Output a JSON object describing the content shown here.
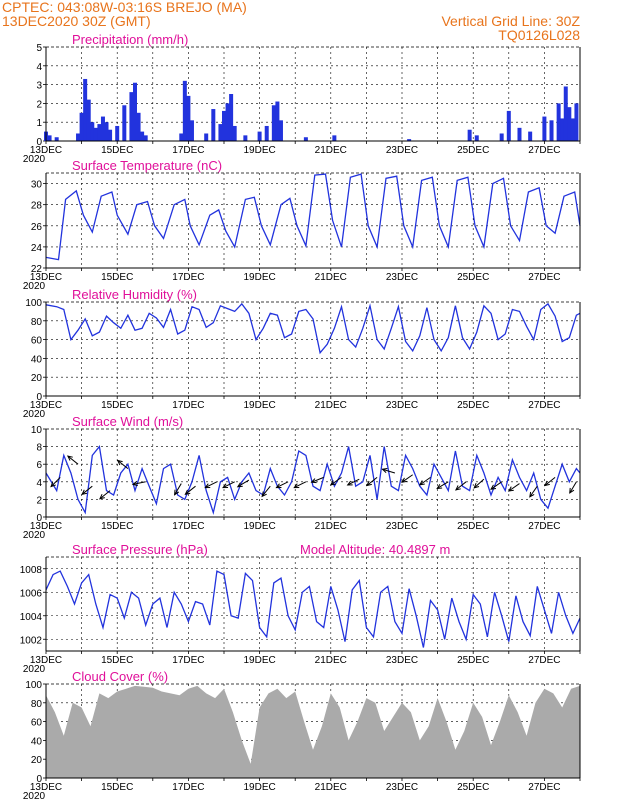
{
  "header": {
    "line1": "CPTEC:   043:08W-03:16S   BREJO (MA)",
    "line2": "13DEC2020 30Z (GMT)",
    "right1": "Vertical Grid Line: 30Z",
    "right2": "TQ0126L028"
  },
  "colors": {
    "header": "#e8741c",
    "panel_title": "#e0109a",
    "series": "#2233dd",
    "cloud": "#aaaaaa",
    "grid": "#000000"
  },
  "x_axis": {
    "labels": [
      "13DEC",
      "15DEC",
      "17DEC",
      "19DEC",
      "21DEC",
      "23DEC",
      "25DEC",
      "27DEC"
    ],
    "year_label": "2020",
    "vertical_grid_line": "30Z"
  },
  "chart_data": [
    {
      "type": "bar",
      "title": "Precipitation (mm/h)",
      "ylim": [
        0,
        5
      ],
      "yticks": [
        "0",
        "1",
        "2",
        "3",
        "4",
        "5"
      ],
      "grid": true,
      "days": [
        13.0,
        13.1,
        13.3,
        13.9,
        14.0,
        14.1,
        14.2,
        14.3,
        14.4,
        14.5,
        14.6,
        14.7,
        14.8,
        15.0,
        15.2,
        15.4,
        15.5,
        15.6,
        15.7,
        15.8,
        16.8,
        16.9,
        17.0,
        17.1,
        17.5,
        17.7,
        17.9,
        18.0,
        18.1,
        18.2,
        18.3,
        18.6,
        19.0,
        19.2,
        19.4,
        19.5,
        19.6,
        20.3,
        21.1,
        23.2,
        24.9,
        25.1,
        25.8,
        26.0,
        26.3,
        26.6,
        27.0,
        27.2,
        27.4,
        27.5,
        27.6,
        27.7,
        27.8,
        27.9
      ],
      "values": [
        0.5,
        0.3,
        0.2,
        0.4,
        1.5,
        3.3,
        2.2,
        1.0,
        0.7,
        0.9,
        1.3,
        1.0,
        0.6,
        0.8,
        1.9,
        2.6,
        3.1,
        1.5,
        0.5,
        0.3,
        0.4,
        3.2,
        2.4,
        1.1,
        0.4,
        1.7,
        0.9,
        1.6,
        2.0,
        2.5,
        0.8,
        0.3,
        0.5,
        0.8,
        1.9,
        2.1,
        1.1,
        0.2,
        0.3,
        0.1,
        0.6,
        0.3,
        0.4,
        1.6,
        0.7,
        0.5,
        1.3,
        1.1,
        2.0,
        1.2,
        2.9,
        1.8,
        1.2,
        2.0
      ]
    },
    {
      "type": "line",
      "title": "Surface Temperature (nC)",
      "ylim": [
        22,
        31
      ],
      "yticks": [
        "22",
        "24",
        "26",
        "28",
        "30"
      ],
      "grid": true,
      "x": [
        13.0,
        13.35,
        13.55,
        13.85,
        14.05,
        14.3,
        14.55,
        14.85,
        15.0,
        15.3,
        15.55,
        15.85,
        16.05,
        16.3,
        16.6,
        16.9,
        17.05,
        17.3,
        17.6,
        17.85,
        18.05,
        18.3,
        18.6,
        18.85,
        19.05,
        19.3,
        19.6,
        19.85,
        20.05,
        20.3,
        20.55,
        20.85,
        21.05,
        21.3,
        21.55,
        21.85,
        22.05,
        22.3,
        22.55,
        22.85,
        23.05,
        23.3,
        23.55,
        23.85,
        24.05,
        24.3,
        24.55,
        24.85,
        25.05,
        25.3,
        25.55,
        25.85,
        26.05,
        26.3,
        26.55,
        26.85,
        27.05,
        27.3,
        27.55,
        27.85,
        28.0
      ],
      "y": [
        23.0,
        22.8,
        28.5,
        29.3,
        27.0,
        25.4,
        28.8,
        29.2,
        27.0,
        25.2,
        28.0,
        28.3,
        26.0,
        24.8,
        28.0,
        28.5,
        26.0,
        24.2,
        27.0,
        27.5,
        25.5,
        24.0,
        28.5,
        28.7,
        26.0,
        24.2,
        28.0,
        28.6,
        26.0,
        24.1,
        30.8,
        30.9,
        26.5,
        24.0,
        30.6,
        30.9,
        26.0,
        24.0,
        30.5,
        30.7,
        26.0,
        24.0,
        30.3,
        30.6,
        26.0,
        24.0,
        30.3,
        30.6,
        26.0,
        24.0,
        30.0,
        30.5,
        26.0,
        24.6,
        29.2,
        29.6,
        26.0,
        25.3,
        28.8,
        29.2,
        26.0
      ]
    },
    {
      "type": "line",
      "title": "Relative Humidity (%)",
      "ylim": [
        0,
        100
      ],
      "yticks": [
        "0",
        "20",
        "40",
        "60",
        "80",
        "100"
      ],
      "grid": true,
      "x": [
        13.0,
        13.3,
        13.5,
        13.7,
        13.9,
        14.1,
        14.3,
        14.5,
        14.7,
        14.9,
        15.1,
        15.3,
        15.5,
        15.7,
        15.9,
        16.1,
        16.3,
        16.5,
        16.7,
        16.9,
        17.1,
        17.3,
        17.5,
        17.7,
        17.9,
        18.1,
        18.3,
        18.5,
        18.7,
        18.9,
        19.1,
        19.3,
        19.5,
        19.7,
        19.9,
        20.1,
        20.3,
        20.5,
        20.7,
        20.9,
        21.1,
        21.3,
        21.5,
        21.7,
        21.9,
        22.1,
        22.3,
        22.5,
        22.7,
        22.9,
        23.1,
        23.3,
        23.5,
        23.7,
        23.9,
        24.1,
        24.3,
        24.5,
        24.7,
        24.9,
        25.1,
        25.3,
        25.5,
        25.7,
        25.9,
        26.1,
        26.3,
        26.5,
        26.7,
        26.9,
        27.1,
        27.3,
        27.5,
        27.7,
        27.9,
        28.0
      ],
      "y": [
        97,
        95,
        92,
        60,
        70,
        82,
        64,
        68,
        85,
        78,
        72,
        86,
        70,
        72,
        88,
        83,
        73,
        92,
        66,
        70,
        95,
        92,
        73,
        78,
        96,
        93,
        90,
        98,
        88,
        60,
        72,
        88,
        86,
        62,
        66,
        90,
        92,
        82,
        46,
        55,
        72,
        95,
        60,
        52,
        72,
        96,
        60,
        50,
        72,
        95,
        58,
        48,
        64,
        94,
        60,
        48,
        62,
        96,
        62,
        50,
        68,
        96,
        88,
        60,
        66,
        92,
        90,
        74,
        60,
        92,
        98,
        85,
        58,
        62,
        86,
        88
      ]
    },
    {
      "type": "line",
      "title": "Surface Wind (m/s)",
      "ylim": [
        0,
        10
      ],
      "yticks": [
        "0",
        "2",
        "4",
        "6",
        "8",
        "10"
      ],
      "grid": true,
      "x": [
        13.0,
        13.3,
        13.5,
        13.7,
        13.9,
        14.1,
        14.3,
        14.5,
        14.7,
        14.9,
        15.1,
        15.3,
        15.5,
        15.7,
        15.9,
        16.1,
        16.3,
        16.5,
        16.7,
        16.9,
        17.1,
        17.3,
        17.5,
        17.7,
        17.9,
        18.1,
        18.3,
        18.5,
        18.7,
        18.9,
        19.1,
        19.3,
        19.5,
        19.7,
        19.9,
        20.1,
        20.3,
        20.5,
        20.7,
        20.9,
        21.1,
        21.3,
        21.5,
        21.7,
        21.9,
        22.1,
        22.3,
        22.5,
        22.7,
        22.9,
        23.1,
        23.3,
        23.5,
        23.7,
        23.9,
        24.1,
        24.3,
        24.5,
        24.7,
        24.9,
        25.1,
        25.3,
        25.5,
        25.7,
        25.9,
        26.1,
        26.3,
        26.5,
        26.7,
        26.9,
        27.1,
        27.3,
        27.5,
        27.7,
        27.9,
        28.0
      ],
      "y": [
        5.0,
        3.0,
        7.0,
        5.0,
        2.0,
        0.5,
        7.0,
        8.0,
        3.0,
        2.5,
        5.0,
        6.0,
        3.0,
        5.5,
        3.5,
        1.5,
        5.5,
        6.0,
        2.5,
        2.0,
        4.0,
        7.0,
        3.0,
        0.5,
        4.0,
        4.5,
        2.0,
        4.0,
        5.0,
        3.0,
        2.5,
        5.5,
        3.5,
        2.5,
        4.0,
        7.5,
        7.0,
        3.5,
        3.0,
        6.0,
        3.5,
        5.0,
        8.0,
        3.5,
        4.0,
        7.0,
        2.0,
        8.0,
        3.5,
        3.0,
        7.0,
        5.5,
        3.5,
        2.5,
        6.0,
        4.5,
        3.0,
        7.5,
        3.5,
        3.0,
        7.0,
        5.0,
        2.5,
        4.5,
        3.0,
        6.5,
        4.5,
        3.0,
        5.0,
        2.0,
        1.0,
        3.5,
        6.0,
        4.0,
        5.5,
        5.0
      ],
      "arrows": [
        {
          "day": 13.4,
          "speed": 4.5,
          "dx": -1,
          "dy": 1
        },
        {
          "day": 13.9,
          "speed": 6.0,
          "dx": -1,
          "dy": -0.8
        },
        {
          "day": 14.3,
          "speed": 3.5,
          "dx": -1,
          "dy": 0.8
        },
        {
          "day": 14.8,
          "speed": 3.0,
          "dx": -1,
          "dy": 0.8
        },
        {
          "day": 15.3,
          "speed": 5.5,
          "dx": -1,
          "dy": -0.8
        },
        {
          "day": 15.8,
          "speed": 4.0,
          "dx": -1,
          "dy": 0.2
        },
        {
          "day": 16.8,
          "speed": 3.8,
          "dx": -0.6,
          "dy": 1
        },
        {
          "day": 17.2,
          "speed": 3.5,
          "dx": -1,
          "dy": 0.8
        },
        {
          "day": 17.8,
          "speed": 4.0,
          "dx": -1,
          "dy": 0.5
        },
        {
          "day": 18.3,
          "speed": 4.0,
          "dx": -1,
          "dy": 0.5
        },
        {
          "day": 18.7,
          "speed": 4.2,
          "dx": -1,
          "dy": 0.6
        },
        {
          "day": 19.3,
          "speed": 3.5,
          "dx": -0.8,
          "dy": 1
        },
        {
          "day": 19.8,
          "speed": 4.0,
          "dx": -1,
          "dy": 0.5
        },
        {
          "day": 20.3,
          "speed": 4.0,
          "dx": -1,
          "dy": 0.5
        },
        {
          "day": 20.8,
          "speed": 4.5,
          "dx": -1,
          "dy": 0.4
        },
        {
          "day": 21.3,
          "speed": 4.5,
          "dx": -1,
          "dy": 0.7
        },
        {
          "day": 21.8,
          "speed": 4.3,
          "dx": -1,
          "dy": 0.5
        },
        {
          "day": 22.3,
          "speed": 4.5,
          "dx": -1,
          "dy": 0.8
        },
        {
          "day": 22.8,
          "speed": 5.0,
          "dx": -1,
          "dy": -0.3
        },
        {
          "day": 23.3,
          "speed": 4.8,
          "dx": -1,
          "dy": 0.7
        },
        {
          "day": 23.8,
          "speed": 4.5,
          "dx": -1,
          "dy": 0.7
        },
        {
          "day": 24.3,
          "speed": 4.0,
          "dx": -1,
          "dy": 0.6
        },
        {
          "day": 24.8,
          "speed": 4.0,
          "dx": -1,
          "dy": 0.8
        },
        {
          "day": 25.3,
          "speed": 4.3,
          "dx": -1,
          "dy": 0.9
        },
        {
          "day": 25.8,
          "speed": 4.0,
          "dx": -1,
          "dy": 0.7
        },
        {
          "day": 26.3,
          "speed": 3.8,
          "dx": -1,
          "dy": 0.7
        },
        {
          "day": 26.8,
          "speed": 3.5,
          "dx": -0.7,
          "dy": 1
        },
        {
          "day": 27.3,
          "speed": 4.5,
          "dx": -1,
          "dy": 0.8
        },
        {
          "day": 27.9,
          "speed": 4.0,
          "dx": -0.6,
          "dy": 1
        }
      ]
    },
    {
      "type": "line",
      "title": "Surface Pressure (hPa)",
      "annotation": "Model Altitude: 40.4897 m",
      "ylim": [
        1001,
        1009
      ],
      "yticks": [
        "1002",
        "1004",
        "1006",
        "1008"
      ],
      "grid": true,
      "x": [
        13.0,
        13.2,
        13.4,
        13.6,
        13.8,
        14.0,
        14.2,
        14.4,
        14.6,
        14.8,
        15.0,
        15.2,
        15.4,
        15.6,
        15.8,
        16.0,
        16.2,
        16.4,
        16.6,
        16.8,
        17.0,
        17.2,
        17.4,
        17.6,
        17.8,
        18.0,
        18.2,
        18.4,
        18.6,
        18.8,
        19.0,
        19.2,
        19.4,
        19.6,
        19.8,
        20.0,
        20.2,
        20.4,
        20.6,
        20.8,
        21.0,
        21.2,
        21.4,
        21.6,
        21.8,
        22.0,
        22.2,
        22.4,
        22.6,
        22.8,
        23.0,
        23.2,
        23.4,
        23.6,
        23.8,
        24.0,
        24.2,
        24.4,
        24.6,
        24.8,
        25.0,
        25.2,
        25.4,
        25.6,
        25.8,
        26.0,
        26.2,
        26.4,
        26.6,
        26.8,
        27.0,
        27.2,
        27.4,
        27.6,
        27.8,
        28.0
      ],
      "y": [
        1006.2,
        1007.5,
        1007.8,
        1006.5,
        1005.0,
        1006.8,
        1007.5,
        1005.0,
        1003.0,
        1005.8,
        1005.5,
        1003.8,
        1006.0,
        1005.5,
        1003.2,
        1005.0,
        1005.5,
        1003.0,
        1006.0,
        1005.0,
        1003.5,
        1005.2,
        1005.0,
        1003.2,
        1007.8,
        1007.5,
        1004.0,
        1003.8,
        1007.6,
        1007.0,
        1003.0,
        1002.2,
        1006.8,
        1007.2,
        1004.0,
        1002.8,
        1006.0,
        1006.5,
        1003.5,
        1003.0,
        1006.5,
        1004.5,
        1001.8,
        1006.2,
        1007.0,
        1003.0,
        1002.2,
        1006.0,
        1006.5,
        1003.5,
        1002.5,
        1006.3,
        1004.0,
        1001.3,
        1005.3,
        1004.5,
        1002.0,
        1005.5,
        1003.5,
        1002.0,
        1005.8,
        1005.0,
        1002.2,
        1006.0,
        1004.0,
        1001.8,
        1005.7,
        1003.5,
        1002.3,
        1006.5,
        1004.5,
        1002.5,
        1006.0,
        1004.0,
        1002.5,
        1003.8
      ]
    },
    {
      "type": "area",
      "title": "Cloud Cover (%)",
      "ylim": [
        0,
        100
      ],
      "yticks": [
        "0",
        "20",
        "40",
        "60",
        "80",
        "100"
      ],
      "grid": true,
      "x": [
        13.0,
        13.25,
        13.5,
        13.75,
        14.0,
        14.25,
        14.5,
        14.75,
        15.0,
        15.25,
        15.5,
        15.75,
        16.0,
        16.25,
        16.5,
        16.75,
        17.0,
        17.25,
        17.5,
        17.75,
        18.0,
        18.25,
        18.5,
        18.75,
        19.0,
        19.25,
        19.5,
        19.75,
        20.0,
        20.25,
        20.5,
        20.75,
        21.0,
        21.25,
        21.5,
        21.75,
        22.0,
        22.25,
        22.5,
        22.75,
        23.0,
        23.25,
        23.5,
        23.75,
        24.0,
        24.25,
        24.5,
        24.75,
        25.0,
        25.25,
        25.5,
        25.75,
        26.0,
        26.25,
        26.5,
        26.75,
        27.0,
        27.25,
        27.5,
        27.75,
        28.0
      ],
      "y": [
        88,
        70,
        45,
        80,
        75,
        55,
        90,
        85,
        92,
        95,
        98,
        97,
        96,
        92,
        90,
        88,
        95,
        98,
        90,
        85,
        95,
        70,
        40,
        15,
        75,
        90,
        95,
        85,
        92,
        60,
        30,
        55,
        90,
        75,
        40,
        60,
        85,
        80,
        50,
        65,
        80,
        70,
        40,
        55,
        85,
        60,
        30,
        50,
        80,
        65,
        35,
        60,
        88,
        70,
        45,
        80,
        95,
        90,
        75,
        95,
        98
      ]
    }
  ]
}
